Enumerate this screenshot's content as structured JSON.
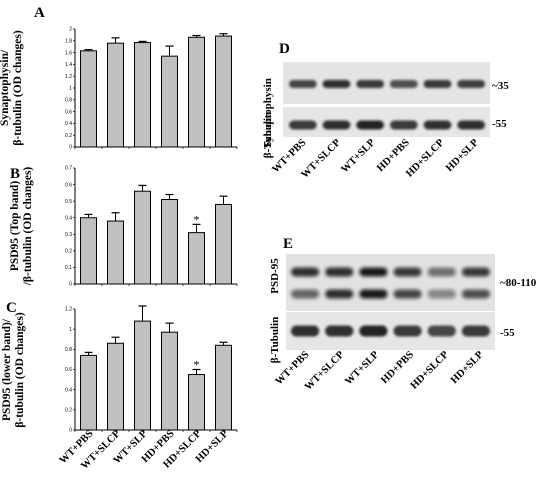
{
  "categories": [
    "WT+PBS",
    "WT+SLCP",
    "WT+SLP",
    "HD+PBS",
    "HD+SLCP",
    "HD+SLP"
  ],
  "chart_data": [
    {
      "type": "bar",
      "panel": "A",
      "ylabel": "Synaptophysin/ β-tubulin (OD changes)",
      "ylabel_lines": [
        "Synaptophysin/",
        "β-tubulin (OD changes)"
      ],
      "ylim": [
        0,
        2.0
      ],
      "yticks": [
        "0",
        "0.2",
        "0.4",
        "0.6",
        "0.8",
        "1",
        "1.2",
        "1.4",
        "1.6",
        "1.8",
        "2"
      ],
      "values": [
        1.63,
        1.76,
        1.77,
        1.54,
        1.86,
        1.88
      ],
      "errors": [
        0.02,
        0.09,
        0.02,
        0.17,
        0.03,
        0.04
      ],
      "significance": [
        "",
        "",
        "",
        "",
        "",
        ""
      ]
    },
    {
      "type": "bar",
      "panel": "B",
      "ylabel": "PSD95 (Top band) /β-tubulin (OD changes)",
      "ylabel_lines": [
        "PSD95 (Top band)",
        "/β-tubulin (OD changes)"
      ],
      "ylim": [
        0,
        0.7
      ],
      "yticks": [
        "0",
        "0.1",
        "0.2",
        "0.3",
        "0.4",
        "0.5",
        "0.6",
        "0.7"
      ],
      "values": [
        0.4,
        0.38,
        0.56,
        0.51,
        0.31,
        0.48
      ],
      "errors": [
        0.02,
        0.05,
        0.035,
        0.03,
        0.05,
        0.05
      ],
      "significance": [
        "",
        "",
        "",
        "",
        "*",
        ""
      ]
    },
    {
      "type": "bar",
      "panel": "C",
      "ylabel": "PSD95 (lower band)/ β-tubulin (OD changes)",
      "ylabel_lines": [
        "PSD95 (lower band)/",
        "β-tubulin (OD changes)"
      ],
      "ylim": [
        0,
        1.2
      ],
      "yticks": [
        "0",
        "0.2",
        "0.4",
        "0.6",
        "0.8",
        "1",
        "1.2"
      ],
      "values": [
        0.74,
        0.86,
        1.08,
        0.97,
        0.55,
        0.84
      ],
      "errors": [
        0.03,
        0.06,
        0.15,
        0.09,
        0.05,
        0.03
      ],
      "significance": [
        "",
        "",
        "",
        "",
        "*",
        ""
      ]
    }
  ],
  "blots": {
    "D": {
      "letter": "D",
      "row1_label": "Synaptophysin",
      "row1_marker": "~35",
      "row2_label": "β-Tubulin",
      "row2_marker": "-55",
      "lanes": [
        "WT+PBS",
        "WT+SLCP",
        "WT+SLP",
        "HD+PBS",
        "HD+SLCP",
        "HD+SLP"
      ]
    },
    "E": {
      "letter": "E",
      "row1_label": "PSD-95",
      "row1_marker": "~80-110",
      "row2_label": "β-Tubulin",
      "row2_marker": "-55",
      "lanes": [
        "WT+PBS",
        "WT+SLCP",
        "WT+SLP",
        "HD+PBS",
        "HD+SLCP",
        "HD+SLP"
      ]
    }
  }
}
